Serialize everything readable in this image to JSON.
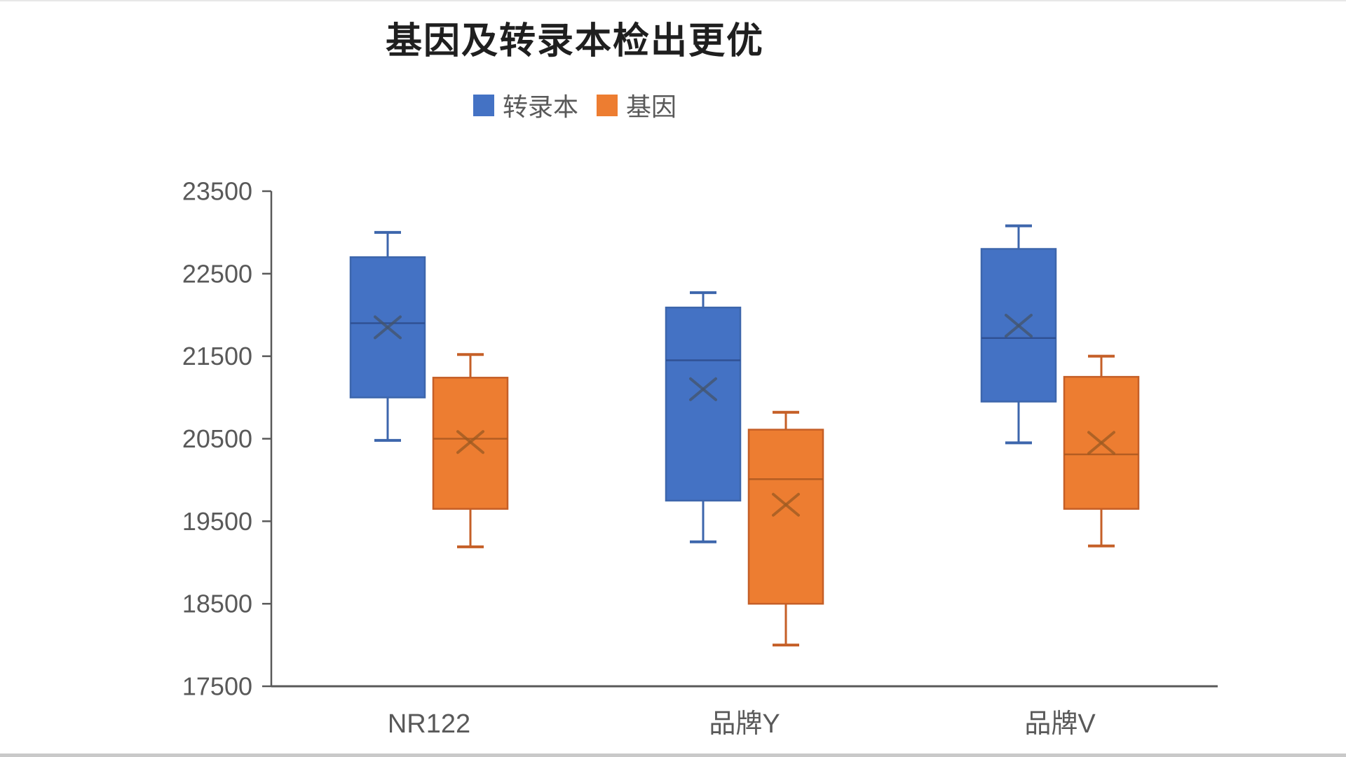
{
  "title": "基因及转录本检出更优",
  "legend": [
    {
      "key": "transcript",
      "label": "转录本",
      "color": "#4472C4"
    },
    {
      "key": "gene",
      "label": "基因",
      "color": "#ED7D31"
    }
  ],
  "chart_data": {
    "type": "boxplot",
    "title": "基因及转录本检出更优",
    "categories": [
      "NR122",
      "品牌Y",
      "品牌V"
    ],
    "category_keys": [
      "nr122",
      "brand-y",
      "brand-v"
    ],
    "y_axis": {
      "min": 17500,
      "max": 23500,
      "tick_step": 1000,
      "ticks": [
        23500,
        22500,
        21500,
        20500,
        19500,
        18500,
        17500
      ]
    },
    "grid": false,
    "legend_position": "top",
    "series": [
      {
        "key": "transcript",
        "name": "转录本",
        "color": "#4472C4",
        "border_color": "#3D66AC",
        "median_color": "#2E4E8F",
        "mean_color": "#44546A",
        "boxes": [
          {
            "category": "NR122",
            "whisker_low": 20480,
            "q1": 21000,
            "median": 21900,
            "mean": 21850,
            "q3": 22700,
            "whisker_high": 23000
          },
          {
            "category": "品牌Y",
            "whisker_low": 19250,
            "q1": 19750,
            "median": 21450,
            "mean": 21100,
            "q3": 22090,
            "whisker_high": 22270
          },
          {
            "category": "品牌V",
            "whisker_low": 20450,
            "q1": 20950,
            "median": 21720,
            "mean": 21870,
            "q3": 22800,
            "whisker_high": 23080
          }
        ]
      },
      {
        "key": "gene",
        "name": "基因",
        "color": "#ED7D31",
        "border_color": "#C55F27",
        "median_color": "#AE5A21",
        "mean_color": "#9B5A21",
        "boxes": [
          {
            "category": "NR122",
            "whisker_low": 19190,
            "q1": 19650,
            "median": 20500,
            "mean": 20460,
            "q3": 21240,
            "whisker_high": 21520
          },
          {
            "category": "品牌Y",
            "whisker_low": 18000,
            "q1": 18500,
            "median": 20010,
            "mean": 19700,
            "q3": 20610,
            "whisker_high": 20820
          },
          {
            "category": "品牌V",
            "whisker_low": 19200,
            "q1": 19650,
            "median": 20310,
            "mean": 20450,
            "q3": 21250,
            "whisker_high": 21500
          }
        ]
      }
    ]
  }
}
